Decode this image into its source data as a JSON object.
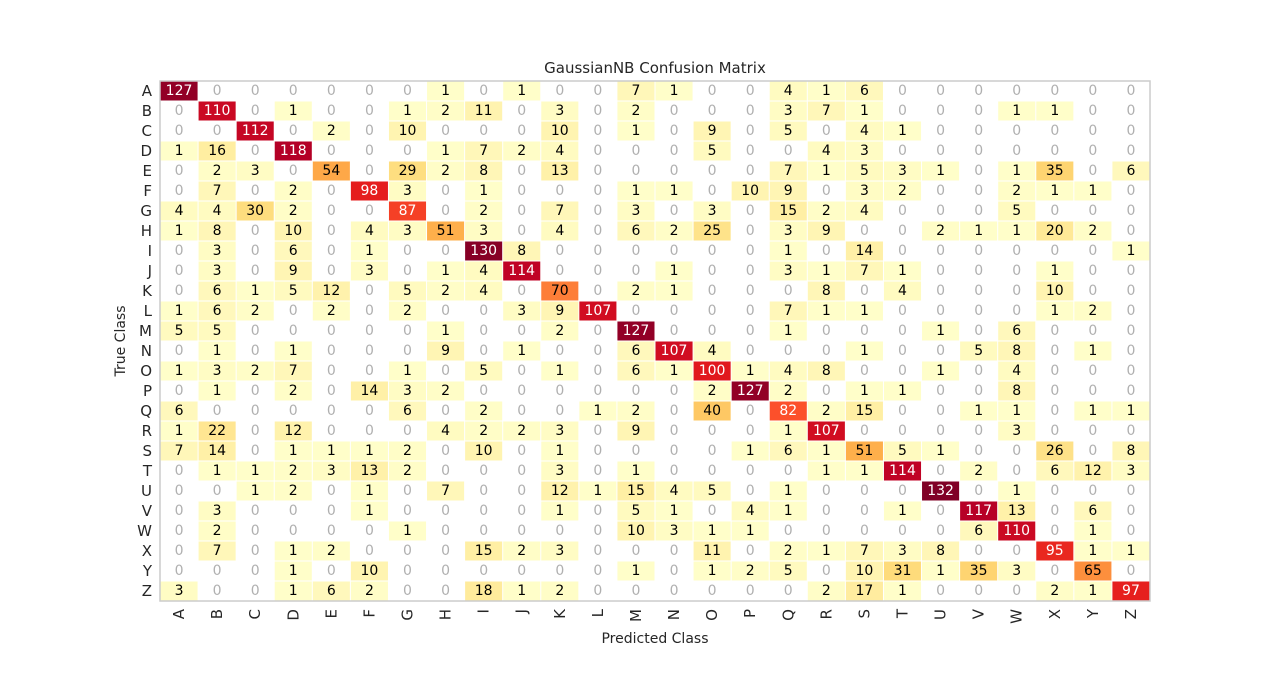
{
  "chart_data": {
    "type": "heatmap",
    "title": "GaussianNB Confusion Matrix",
    "xlabel": "Predicted Class",
    "ylabel": "True Class",
    "x_categories": [
      "A",
      "B",
      "C",
      "D",
      "E",
      "F",
      "G",
      "H",
      "I",
      "J",
      "K",
      "L",
      "M",
      "N",
      "O",
      "P",
      "Q",
      "R",
      "S",
      "T",
      "U",
      "V",
      "W",
      "X",
      "Y",
      "Z"
    ],
    "y_categories": [
      "A",
      "B",
      "C",
      "D",
      "E",
      "F",
      "G",
      "H",
      "I",
      "J",
      "K",
      "L",
      "M",
      "N",
      "O",
      "P",
      "Q",
      "R",
      "S",
      "T",
      "U",
      "V",
      "W",
      "X",
      "Y",
      "Z"
    ],
    "colormap": "YlOrRd",
    "zero_color": "#ffffff",
    "zero_text_color": "#b0b0b0",
    "grid": false,
    "values": [
      [
        127,
        0,
        0,
        0,
        0,
        0,
        0,
        1,
        0,
        1,
        0,
        0,
        7,
        1,
        0,
        0,
        4,
        1,
        6,
        0,
        0,
        0,
        0,
        0,
        0,
        0
      ],
      [
        0,
        110,
        0,
        1,
        0,
        0,
        1,
        2,
        11,
        0,
        3,
        0,
        2,
        0,
        0,
        0,
        3,
        7,
        1,
        0,
        0,
        0,
        1,
        1,
        0,
        0
      ],
      [
        0,
        0,
        112,
        0,
        2,
        0,
        10,
        0,
        0,
        0,
        10,
        0,
        1,
        0,
        9,
        0,
        5,
        0,
        4,
        1,
        0,
        0,
        0,
        0,
        0,
        0
      ],
      [
        1,
        16,
        0,
        118,
        0,
        0,
        0,
        1,
        7,
        2,
        4,
        0,
        0,
        0,
        5,
        0,
        0,
        4,
        3,
        0,
        0,
        0,
        0,
        0,
        0,
        0
      ],
      [
        0,
        2,
        3,
        0,
        54,
        0,
        29,
        2,
        8,
        0,
        13,
        0,
        0,
        0,
        0,
        0,
        7,
        1,
        5,
        3,
        1,
        0,
        1,
        35,
        0,
        6
      ],
      [
        0,
        7,
        0,
        2,
        0,
        98,
        3,
        0,
        1,
        0,
        0,
        0,
        1,
        1,
        0,
        10,
        9,
        0,
        3,
        2,
        0,
        0,
        2,
        1,
        1,
        0
      ],
      [
        4,
        4,
        30,
        2,
        0,
        0,
        87,
        0,
        2,
        0,
        7,
        0,
        3,
        0,
        3,
        0,
        15,
        2,
        4,
        0,
        0,
        0,
        5,
        0,
        0,
        0
      ],
      [
        1,
        8,
        0,
        10,
        0,
        4,
        3,
        51,
        3,
        0,
        4,
        0,
        6,
        2,
        25,
        0,
        3,
        9,
        0,
        0,
        2,
        1,
        1,
        20,
        2,
        0
      ],
      [
        0,
        3,
        0,
        6,
        0,
        1,
        0,
        0,
        130,
        8,
        0,
        0,
        0,
        0,
        0,
        0,
        1,
        0,
        14,
        0,
        0,
        0,
        0,
        0,
        0,
        1
      ],
      [
        0,
        3,
        0,
        9,
        0,
        3,
        0,
        1,
        4,
        114,
        0,
        0,
        0,
        1,
        0,
        0,
        3,
        1,
        7,
        1,
        0,
        0,
        0,
        1,
        0,
        0
      ],
      [
        0,
        6,
        1,
        5,
        12,
        0,
        5,
        2,
        4,
        0,
        70,
        0,
        2,
        1,
        0,
        0,
        0,
        8,
        0,
        4,
        0,
        0,
        0,
        10,
        0,
        0
      ],
      [
        1,
        6,
        2,
        0,
        2,
        0,
        2,
        0,
        0,
        3,
        9,
        107,
        0,
        0,
        0,
        0,
        7,
        1,
        1,
        0,
        0,
        0,
        0,
        1,
        2,
        0
      ],
      [
        5,
        5,
        0,
        0,
        0,
        0,
        0,
        1,
        0,
        0,
        2,
        0,
        127,
        0,
        0,
        0,
        1,
        0,
        0,
        0,
        1,
        0,
        6,
        0,
        0,
        0
      ],
      [
        0,
        1,
        0,
        1,
        0,
        0,
        0,
        9,
        0,
        1,
        0,
        0,
        6,
        107,
        4,
        0,
        0,
        0,
        1,
        0,
        0,
        5,
        8,
        0,
        1,
        0
      ],
      [
        1,
        3,
        2,
        7,
        0,
        0,
        1,
        0,
        5,
        0,
        1,
        0,
        6,
        1,
        100,
        1,
        4,
        8,
        0,
        0,
        1,
        0,
        4,
        0,
        0,
        0
      ],
      [
        0,
        1,
        0,
        2,
        0,
        14,
        3,
        2,
        0,
        0,
        0,
        0,
        0,
        0,
        2,
        127,
        2,
        0,
        1,
        1,
        0,
        0,
        8,
        0,
        0,
        0
      ],
      [
        6,
        0,
        0,
        0,
        0,
        0,
        6,
        0,
        2,
        0,
        0,
        1,
        2,
        0,
        40,
        0,
        82,
        2,
        15,
        0,
        0,
        1,
        1,
        0,
        1,
        1
      ],
      [
        1,
        22,
        0,
        12,
        0,
        0,
        0,
        4,
        2,
        2,
        3,
        0,
        9,
        0,
        0,
        0,
        1,
        107,
        0,
        0,
        0,
        0,
        3,
        0,
        0,
        0
      ],
      [
        7,
        14,
        0,
        1,
        1,
        1,
        2,
        0,
        10,
        0,
        1,
        0,
        0,
        0,
        0,
        1,
        6,
        1,
        51,
        5,
        1,
        0,
        0,
        26,
        0,
        8
      ],
      [
        0,
        1,
        1,
        2,
        3,
        13,
        2,
        0,
        0,
        0,
        3,
        0,
        1,
        0,
        0,
        0,
        0,
        1,
        1,
        114,
        0,
        2,
        0,
        6,
        12,
        3
      ],
      [
        0,
        0,
        1,
        2,
        0,
        1,
        0,
        7,
        0,
        0,
        12,
        1,
        15,
        4,
        5,
        0,
        1,
        0,
        0,
        0,
        132,
        0,
        1,
        0,
        0,
        0
      ],
      [
        0,
        3,
        0,
        0,
        0,
        1,
        0,
        0,
        0,
        0,
        1,
        0,
        5,
        1,
        0,
        4,
        1,
        0,
        0,
        1,
        0,
        117,
        13,
        0,
        6,
        0
      ],
      [
        0,
        2,
        0,
        0,
        0,
        0,
        1,
        0,
        0,
        0,
        0,
        0,
        10,
        3,
        1,
        1,
        0,
        0,
        0,
        0,
        0,
        6,
        110,
        0,
        1,
        0
      ],
      [
        0,
        7,
        0,
        1,
        2,
        0,
        0,
        0,
        15,
        2,
        3,
        0,
        0,
        0,
        11,
        0,
        2,
        1,
        7,
        3,
        8,
        0,
        0,
        95,
        1,
        1
      ],
      [
        0,
        0,
        0,
        1,
        0,
        10,
        0,
        0,
        0,
        0,
        0,
        0,
        1,
        0,
        1,
        2,
        5,
        0,
        10,
        31,
        1,
        35,
        3,
        0,
        65,
        0
      ],
      [
        3,
        0,
        0,
        1,
        6,
        2,
        0,
        0,
        18,
        1,
        2,
        0,
        0,
        0,
        0,
        0,
        0,
        2,
        17,
        1,
        0,
        0,
        0,
        2,
        1,
        97
      ]
    ]
  }
}
